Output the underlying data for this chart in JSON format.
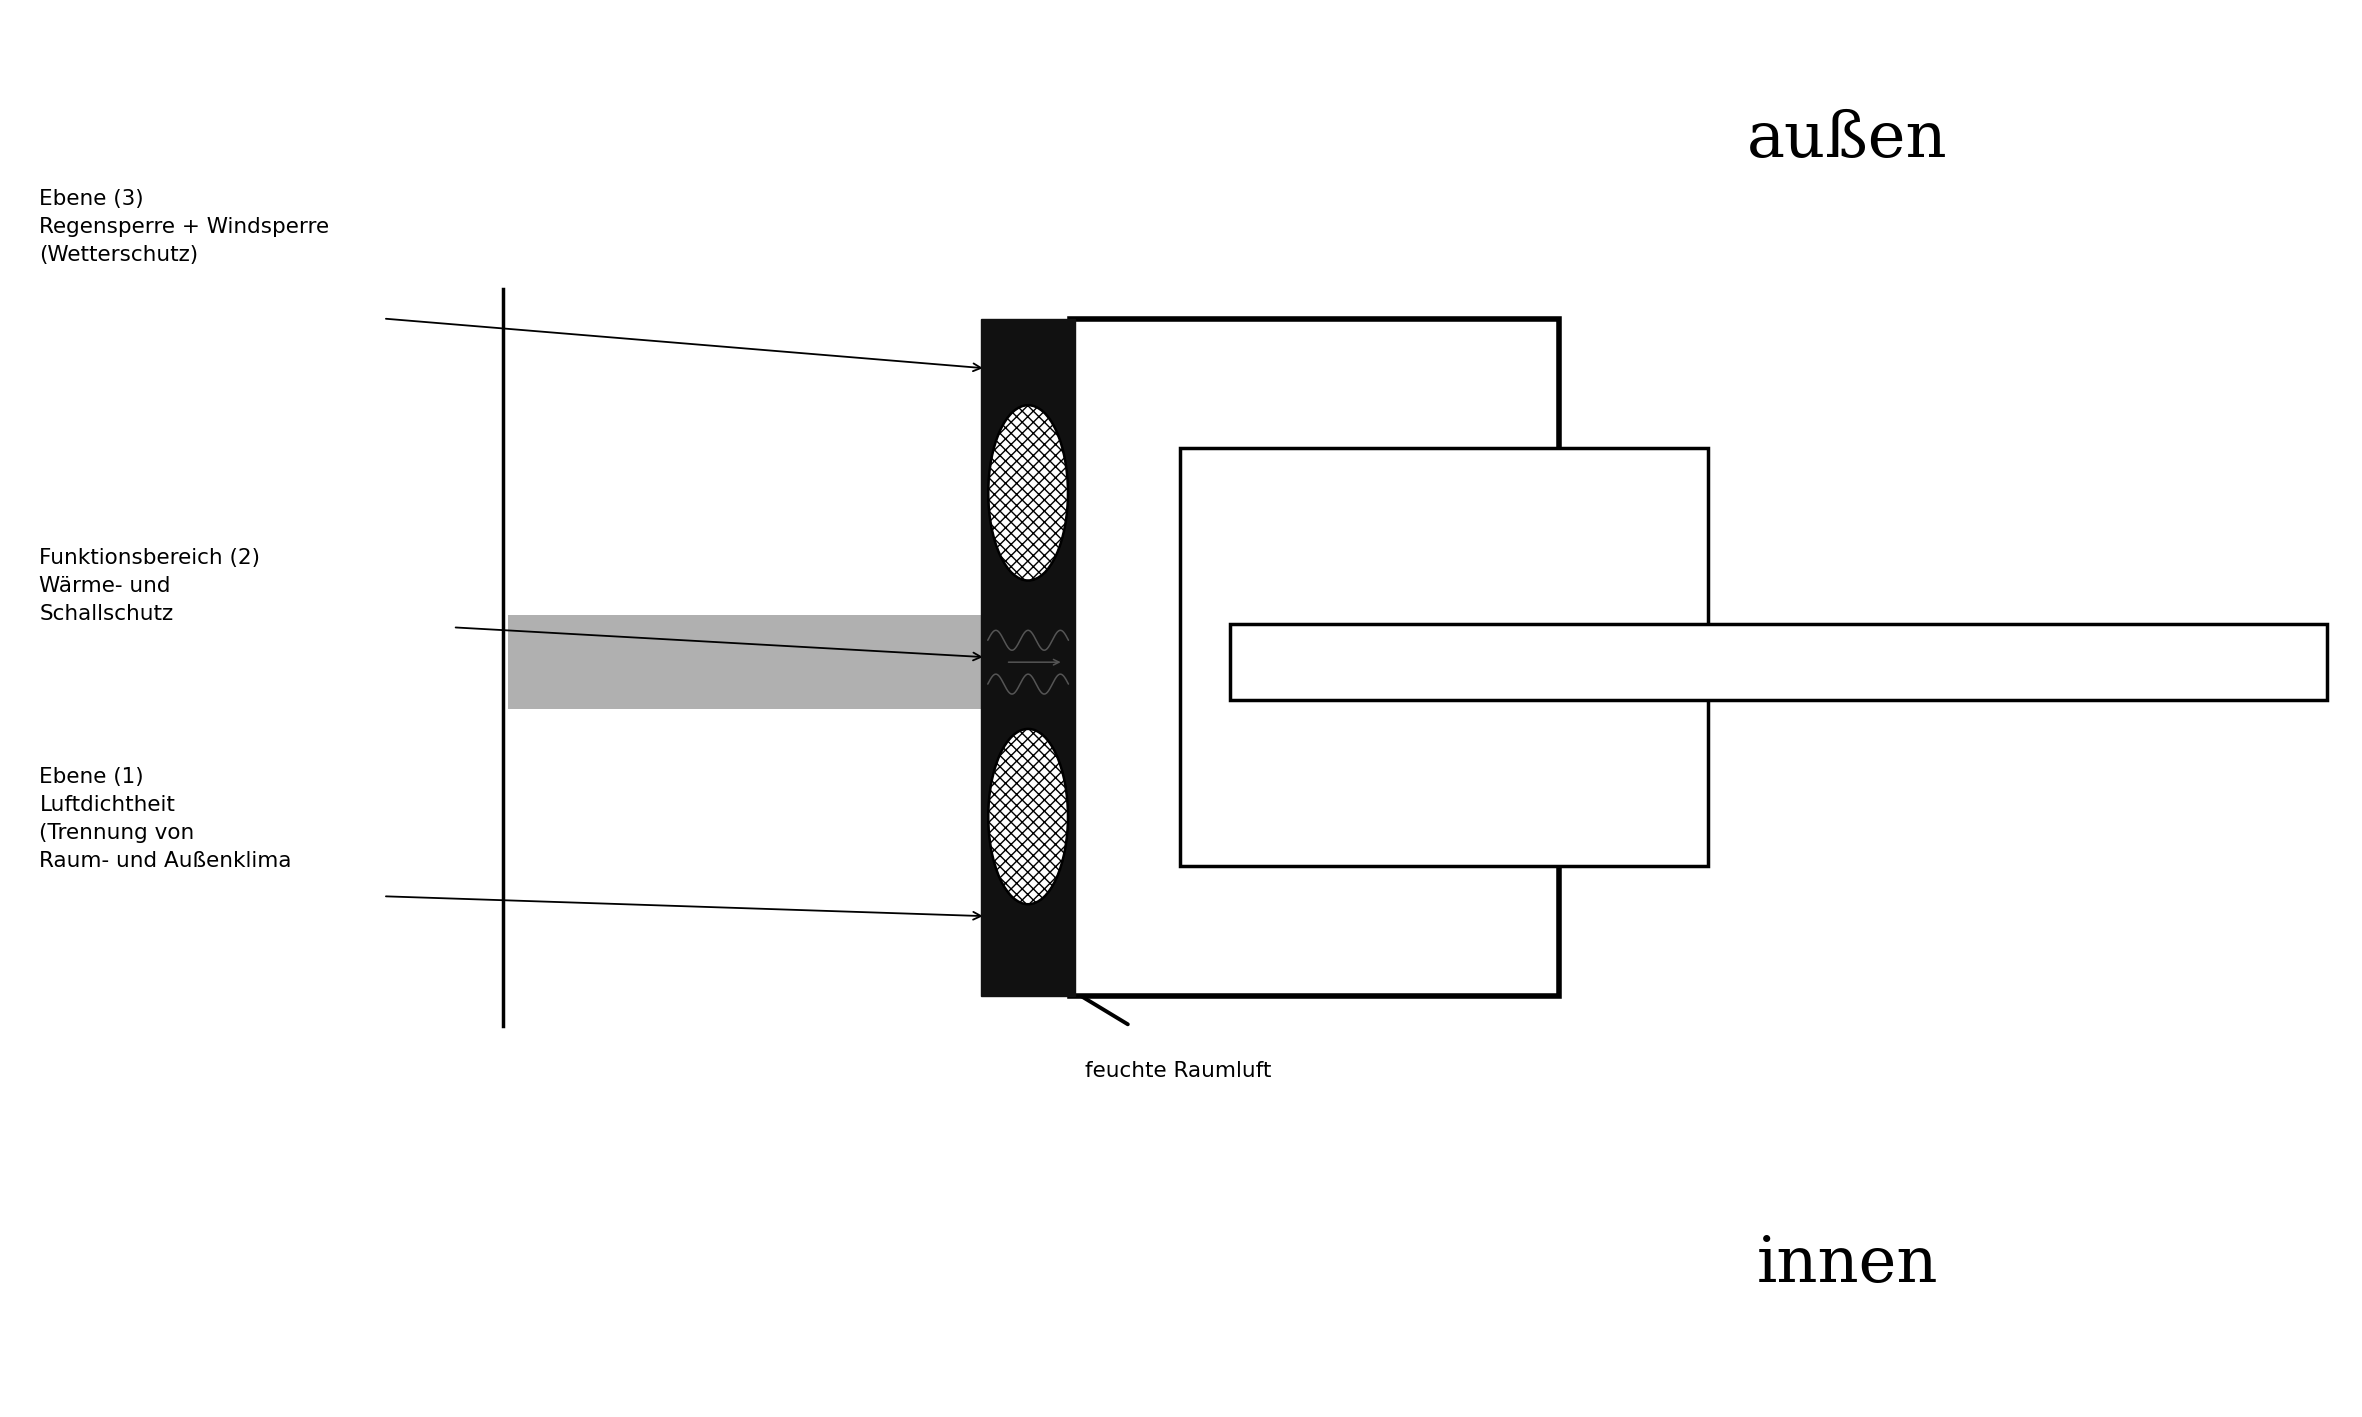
{
  "background_color": "#ffffff",
  "text_aussen": "außen",
  "text_innen": "innen",
  "text_label1": "Ebene (3)\nRegensperre + Windsperre\n(Wetterschutz)",
  "text_label2": "Funktionsbereich (2)\nWärme- und\nSchallschutz",
  "text_label3": "Ebene (1)\nLuftdichtheit\n(Trennung von\nRaum- und Außenklima",
  "text_feuchte": "feuchte Raumluft",
  "line_color": "#000000",
  "seal_color": "#111111",
  "gray_color": "#b0b0b0"
}
